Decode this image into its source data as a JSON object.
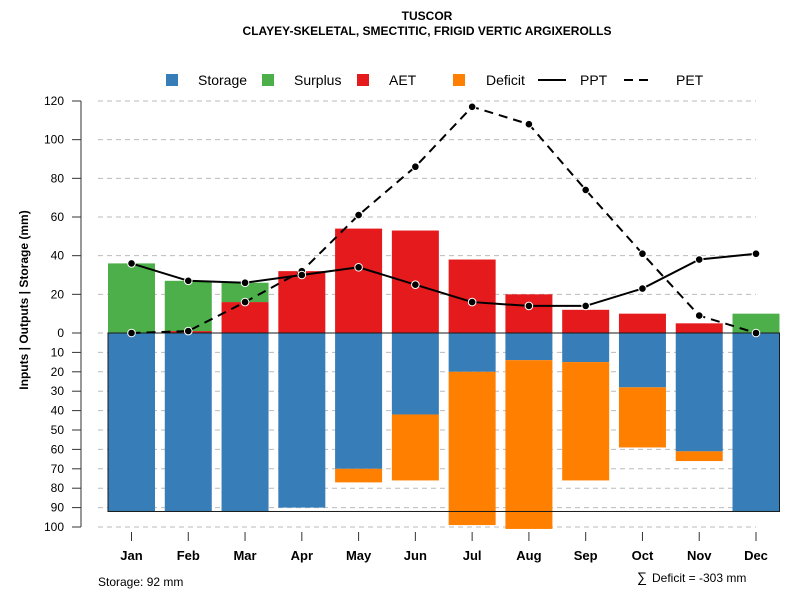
{
  "chart_data": {
    "type": "bar",
    "title": "TUSCOR",
    "subtitle": "CLAYEY-SKELETAL, SMECTITIC, FRIGID VERTIC ARGIXEROLLS",
    "ylabel": "Inputs | Outputs | Storage    (mm)",
    "xlabel": "",
    "ylim_top": [
      0,
      120
    ],
    "ylim_bottom": [
      0,
      100
    ],
    "yticks_top": [
      0,
      20,
      40,
      60,
      80,
      100,
      120
    ],
    "yticks_bottom": [
      10,
      20,
      30,
      40,
      50,
      60,
      70,
      80,
      90,
      100
    ],
    "grid": true,
    "legend_position": "top",
    "legend": [
      {
        "name": "Storage",
        "kind": "box",
        "color": "#377EB8"
      },
      {
        "name": "Surplus",
        "kind": "box",
        "color": "#4DAF4A"
      },
      {
        "name": "AET",
        "kind": "box",
        "color": "#E41A1C"
      },
      {
        "name": "Deficit",
        "kind": "box",
        "color": "#FF7F00"
      },
      {
        "name": "PPT",
        "kind": "solid-line",
        "color": "#000000"
      },
      {
        "name": "PET",
        "kind": "dashed-line",
        "color": "#000000"
      }
    ],
    "categories": [
      "Jan",
      "Feb",
      "Mar",
      "Apr",
      "May",
      "Jun",
      "Jul",
      "Aug",
      "Sep",
      "Oct",
      "Nov",
      "Dec"
    ],
    "series": [
      {
        "name": "AET",
        "values": [
          0,
          1,
          16,
          32,
          54,
          53,
          38,
          20,
          12,
          10,
          5,
          0
        ]
      },
      {
        "name": "Surplus",
        "values": [
          36,
          26,
          10,
          0,
          0,
          0,
          0,
          0,
          0,
          0,
          0,
          10
        ]
      },
      {
        "name": "Storage",
        "values": [
          92,
          92,
          92,
          90,
          70,
          42,
          20,
          14,
          15,
          28,
          61,
          92
        ]
      },
      {
        "name": "Deficit",
        "values": [
          0,
          0,
          0,
          0,
          7,
          34,
          79,
          87,
          61,
          31,
          5,
          0
        ]
      },
      {
        "name": "PPT",
        "values": [
          36,
          27,
          26,
          30,
          34,
          25,
          16,
          14,
          14,
          23,
          38,
          41
        ]
      },
      {
        "name": "PET",
        "values": [
          0,
          1,
          16,
          32,
          61,
          86,
          117,
          108,
          74,
          41,
          9,
          0
        ]
      }
    ],
    "storage_capacity": 92
  },
  "footer": {
    "storage_note": "Storage: 92 mm",
    "deficit_symbol": "∑",
    "deficit_note": "Deficit = -303 mm"
  }
}
